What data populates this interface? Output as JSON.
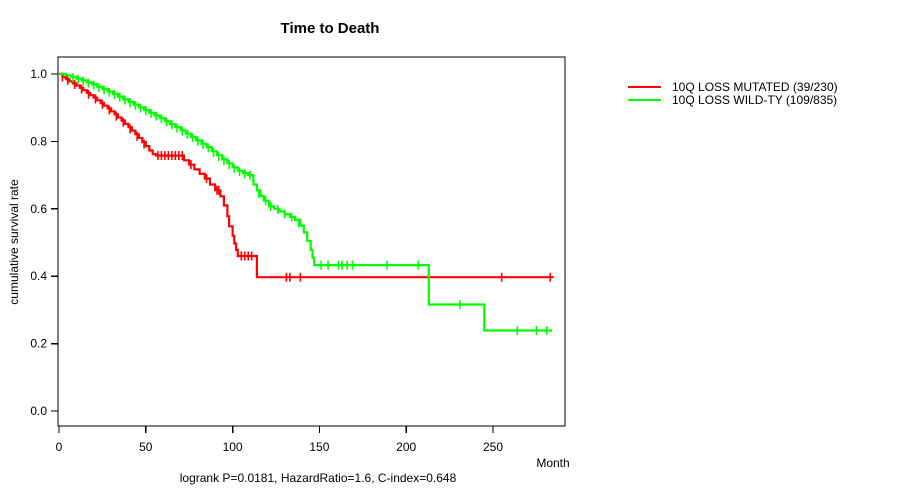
{
  "chart_data": {
    "type": "line",
    "subtype": "kaplan-meier-step",
    "title": "Time to Death",
    "xlabel": "Month",
    "ylabel": "cumulative survival rate",
    "annotation": "logrank P=0.0181, HazardRatio=1.6, C-index=0.648",
    "xlim": [
      0,
      292
    ],
    "ylim": [
      0.0,
      1.0
    ],
    "xticks": [
      0,
      50,
      100,
      150,
      200,
      250
    ],
    "yticks": [
      0.0,
      0.2,
      0.4,
      0.6,
      0.8,
      1.0
    ],
    "ytick_labels": [
      "0.0",
      "0.2",
      "0.4",
      "0.6",
      "0.8",
      "1.0"
    ],
    "grid": false,
    "legend_position": "right-outside",
    "series": [
      {
        "name": "mutated",
        "label": "10Q LOSS MUTATED (39/230)",
        "color": "#FF0000",
        "steps": [
          [
            0,
            1.0
          ],
          [
            2,
            0.991
          ],
          [
            4,
            0.985
          ],
          [
            6,
            0.978
          ],
          [
            8,
            0.972
          ],
          [
            10,
            0.966
          ],
          [
            12,
            0.959
          ],
          [
            14,
            0.952
          ],
          [
            16,
            0.944
          ],
          [
            18,
            0.937
          ],
          [
            20,
            0.93
          ],
          [
            22,
            0.922
          ],
          [
            24,
            0.914
          ],
          [
            26,
            0.906
          ],
          [
            28,
            0.898
          ],
          [
            30,
            0.889
          ],
          [
            32,
            0.88
          ],
          [
            34,
            0.871
          ],
          [
            36,
            0.862
          ],
          [
            38,
            0.852
          ],
          [
            40,
            0.842
          ],
          [
            42,
            0.832
          ],
          [
            44,
            0.821
          ],
          [
            46,
            0.81
          ],
          [
            48,
            0.798
          ],
          [
            50,
            0.786
          ],
          [
            52,
            0.773
          ],
          [
            54,
            0.762
          ],
          [
            56,
            0.758
          ],
          [
            72,
            0.744
          ],
          [
            75,
            0.731
          ],
          [
            78,
            0.717
          ],
          [
            81,
            0.704
          ],
          [
            84,
            0.69
          ],
          [
            87,
            0.672
          ],
          [
            90,
            0.655
          ],
          [
            93,
            0.637
          ],
          [
            95,
            0.61
          ],
          [
            97,
            0.578
          ],
          [
            98,
            0.548
          ],
          [
            100,
            0.52
          ],
          [
            101,
            0.497
          ],
          [
            102,
            0.478
          ],
          [
            103,
            0.46
          ],
          [
            114,
            0.397
          ],
          [
            285,
            0.397
          ]
        ],
        "censors": [
          [
            2,
            0.991
          ],
          [
            5,
            0.981
          ],
          [
            9,
            0.969
          ],
          [
            13,
            0.955
          ],
          [
            17,
            0.94
          ],
          [
            21,
            0.926
          ],
          [
            25,
            0.91
          ],
          [
            29,
            0.893
          ],
          [
            33,
            0.875
          ],
          [
            37,
            0.857
          ],
          [
            41,
            0.837
          ],
          [
            45,
            0.815
          ],
          [
            49,
            0.792
          ],
          [
            57,
            0.758
          ],
          [
            59,
            0.758
          ],
          [
            61,
            0.758
          ],
          [
            63,
            0.758
          ],
          [
            65,
            0.758
          ],
          [
            67,
            0.758
          ],
          [
            69,
            0.758
          ],
          [
            71,
            0.758
          ],
          [
            76,
            0.731
          ],
          [
            85,
            0.69
          ],
          [
            91,
            0.655
          ],
          [
            92,
            0.655
          ],
          [
            105,
            0.46
          ],
          [
            107,
            0.46
          ],
          [
            109,
            0.46
          ],
          [
            111,
            0.46
          ],
          [
            131,
            0.397
          ],
          [
            133,
            0.397
          ],
          [
            139,
            0.397
          ],
          [
            255,
            0.397
          ],
          [
            283,
            0.397
          ]
        ]
      },
      {
        "name": "wildtype",
        "label": "10Q LOSS WILD-TY (109/835)",
        "color": "#00FF00",
        "steps": [
          [
            0,
            1.0
          ],
          [
            4,
            0.996
          ],
          [
            7,
            0.991
          ],
          [
            10,
            0.986
          ],
          [
            13,
            0.981
          ],
          [
            16,
            0.975
          ],
          [
            19,
            0.969
          ],
          [
            22,
            0.962
          ],
          [
            25,
            0.955
          ],
          [
            28,
            0.948
          ],
          [
            31,
            0.941
          ],
          [
            34,
            0.933
          ],
          [
            37,
            0.925
          ],
          [
            40,
            0.917
          ],
          [
            43,
            0.909
          ],
          [
            46,
            0.901
          ],
          [
            49,
            0.893
          ],
          [
            52,
            0.885
          ],
          [
            55,
            0.877
          ],
          [
            58,
            0.869
          ],
          [
            61,
            0.86
          ],
          [
            64,
            0.851
          ],
          [
            67,
            0.842
          ],
          [
            70,
            0.833
          ],
          [
            73,
            0.823
          ],
          [
            76,
            0.813
          ],
          [
            79,
            0.803
          ],
          [
            82,
            0.793
          ],
          [
            85,
            0.783
          ],
          [
            88,
            0.771
          ],
          [
            91,
            0.759
          ],
          [
            94,
            0.747
          ],
          [
            97,
            0.735
          ],
          [
            100,
            0.723
          ],
          [
            103,
            0.713
          ],
          [
            106,
            0.706
          ],
          [
            109,
            0.7
          ],
          [
            112,
            0.672
          ],
          [
            114,
            0.655
          ],
          [
            116,
            0.638
          ],
          [
            118,
            0.624
          ],
          [
            121,
            0.607
          ],
          [
            124,
            0.6
          ],
          [
            127,
            0.592
          ],
          [
            130,
            0.584
          ],
          [
            133,
            0.576
          ],
          [
            136,
            0.567
          ],
          [
            139,
            0.55
          ],
          [
            141,
            0.53
          ],
          [
            143,
            0.505
          ],
          [
            145,
            0.478
          ],
          [
            146,
            0.455
          ],
          [
            147,
            0.433
          ],
          [
            213,
            0.316
          ],
          [
            245,
            0.239
          ],
          [
            284,
            0.239
          ]
        ],
        "censors": [
          [
            8,
            0.989
          ],
          [
            11,
            0.985
          ],
          [
            14,
            0.979
          ],
          [
            17,
            0.973
          ],
          [
            20,
            0.967
          ],
          [
            23,
            0.96
          ],
          [
            26,
            0.953
          ],
          [
            29,
            0.946
          ],
          [
            32,
            0.939
          ],
          [
            35,
            0.931
          ],
          [
            38,
            0.923
          ],
          [
            41,
            0.915
          ],
          [
            44,
            0.907
          ],
          [
            47,
            0.899
          ],
          [
            50,
            0.891
          ],
          [
            53,
            0.883
          ],
          [
            56,
            0.875
          ],
          [
            59,
            0.867
          ],
          [
            62,
            0.858
          ],
          [
            65,
            0.849
          ],
          [
            68,
            0.84
          ],
          [
            71,
            0.831
          ],
          [
            74,
            0.821
          ],
          [
            77,
            0.811
          ],
          [
            80,
            0.801
          ],
          [
            83,
            0.791
          ],
          [
            86,
            0.781
          ],
          [
            89,
            0.767
          ],
          [
            92,
            0.755
          ],
          [
            95,
            0.743
          ],
          [
            98,
            0.731
          ],
          [
            101,
            0.719
          ],
          [
            104,
            0.71
          ],
          [
            107,
            0.704
          ],
          [
            110,
            0.7
          ],
          [
            115,
            0.645
          ],
          [
            119,
            0.624
          ],
          [
            122,
            0.607
          ],
          [
            126,
            0.598
          ],
          [
            130,
            0.584
          ],
          [
            134,
            0.576
          ],
          [
            138,
            0.558
          ],
          [
            151,
            0.433
          ],
          [
            155,
            0.433
          ],
          [
            161,
            0.433
          ],
          [
            163,
            0.433
          ],
          [
            166,
            0.433
          ],
          [
            169,
            0.433
          ],
          [
            189,
            0.433
          ],
          [
            207,
            0.433
          ],
          [
            231,
            0.316
          ],
          [
            264,
            0.239
          ],
          [
            275,
            0.239
          ],
          [
            281,
            0.239
          ]
        ]
      }
    ]
  }
}
